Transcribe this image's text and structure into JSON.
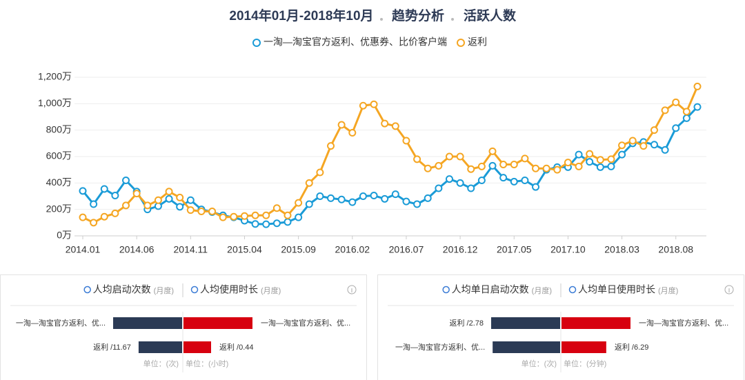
{
  "header": {
    "title": "2014年01月-2018年10月",
    "section": "趋势分析",
    "metric": "活跃人数"
  },
  "chart_data": {
    "type": "line",
    "categories": [
      "2014.01",
      null,
      null,
      null,
      null,
      "2014.06",
      null,
      null,
      null,
      null,
      "2014.11",
      null,
      null,
      null,
      null,
      "2015.04",
      null,
      null,
      null,
      null,
      "2015.09",
      null,
      null,
      null,
      null,
      "2016.02",
      null,
      null,
      null,
      null,
      "2016.07",
      null,
      null,
      null,
      null,
      "2016.12",
      null,
      null,
      null,
      null,
      "2017.05",
      null,
      null,
      null,
      null,
      "2017.10",
      null,
      null,
      null,
      null,
      "2018.03",
      null,
      null,
      null,
      null,
      "2018.08",
      null,
      null
    ],
    "series": [
      {
        "name": "一淘—淘宝官方返利、优惠券、比价客户端",
        "color": "#1a9bd7",
        "values": [
          340,
          240,
          355,
          305,
          420,
          335,
          200,
          225,
          280,
          220,
          270,
          200,
          180,
          155,
          140,
          115,
          90,
          88,
          95,
          105,
          140,
          240,
          300,
          285,
          275,
          255,
          300,
          305,
          280,
          315,
          260,
          240,
          285,
          360,
          430,
          400,
          360,
          420,
          530,
          440,
          410,
          420,
          370,
          500,
          520,
          520,
          615,
          560,
          520,
          525,
          615,
          700,
          710,
          690,
          650,
          815,
          890,
          975
        ]
      },
      {
        "name": "返利",
        "color": "#f5a623",
        "values": [
          140,
          100,
          145,
          170,
          230,
          320,
          230,
          270,
          335,
          290,
          195,
          185,
          185,
          140,
          145,
          150,
          155,
          155,
          210,
          155,
          250,
          400,
          480,
          680,
          840,
          780,
          985,
          995,
          850,
          830,
          720,
          580,
          510,
          530,
          600,
          600,
          505,
          525,
          640,
          540,
          540,
          585,
          510,
          510,
          500,
          555,
          525,
          620,
          575,
          580,
          685,
          720,
          680,
          800,
          950,
          1010,
          940,
          1130
        ]
      }
    ],
    "ylim": [
      0,
      1200
    ],
    "yticks": [
      {
        "value": 0,
        "label": "0万"
      },
      {
        "value": 200,
        "label": "200万"
      },
      {
        "value": 400,
        "label": "400万"
      },
      {
        "value": 600,
        "label": "600万"
      },
      {
        "value": 800,
        "label": "800万"
      },
      {
        "value": 1000,
        "label": "1,000万"
      },
      {
        "value": 1200,
        "label": "1,200万"
      }
    ],
    "grid": true
  },
  "panels": [
    {
      "metrics": [
        {
          "title": "人均启动次数",
          "period": "(月度)",
          "unit": "单位：(次)",
          "color": "#2b3a55",
          "bars": [
            {
              "label": "一淘—淘宝官方返利、优...",
              "value": 18.5
            },
            {
              "label": "返利 /11.67",
              "value": 11.67
            }
          ]
        },
        {
          "title": "人均使用时长",
          "period": "(月度)",
          "unit": "单位：(小时)",
          "color": "#d7000f",
          "bars": [
            {
              "label": "一淘—淘宝官方返利、优...",
              "value": 1.1
            },
            {
              "label": "返利 /0.44",
              "value": 0.44
            }
          ]
        }
      ]
    },
    {
      "metrics": [
        {
          "title": "人均单日启动次数",
          "period": "(月度)",
          "unit": "单位：(次)",
          "color": "#2b3a55",
          "bars": [
            {
              "label": "返利 /2.78",
              "value": 2.78
            },
            {
              "label": "一淘—淘宝官方返利、优...",
              "value": 2.72
            }
          ]
        },
        {
          "title": "人均单日使用时长",
          "period": "(月度)",
          "unit": "单位：(分钟)",
          "color": "#d7000f",
          "bars": [
            {
              "label": "一淘—淘宝官方返利、优...",
              "value": 9.7
            },
            {
              "label": "返利 /6.29",
              "value": 6.29
            }
          ]
        }
      ]
    }
  ]
}
